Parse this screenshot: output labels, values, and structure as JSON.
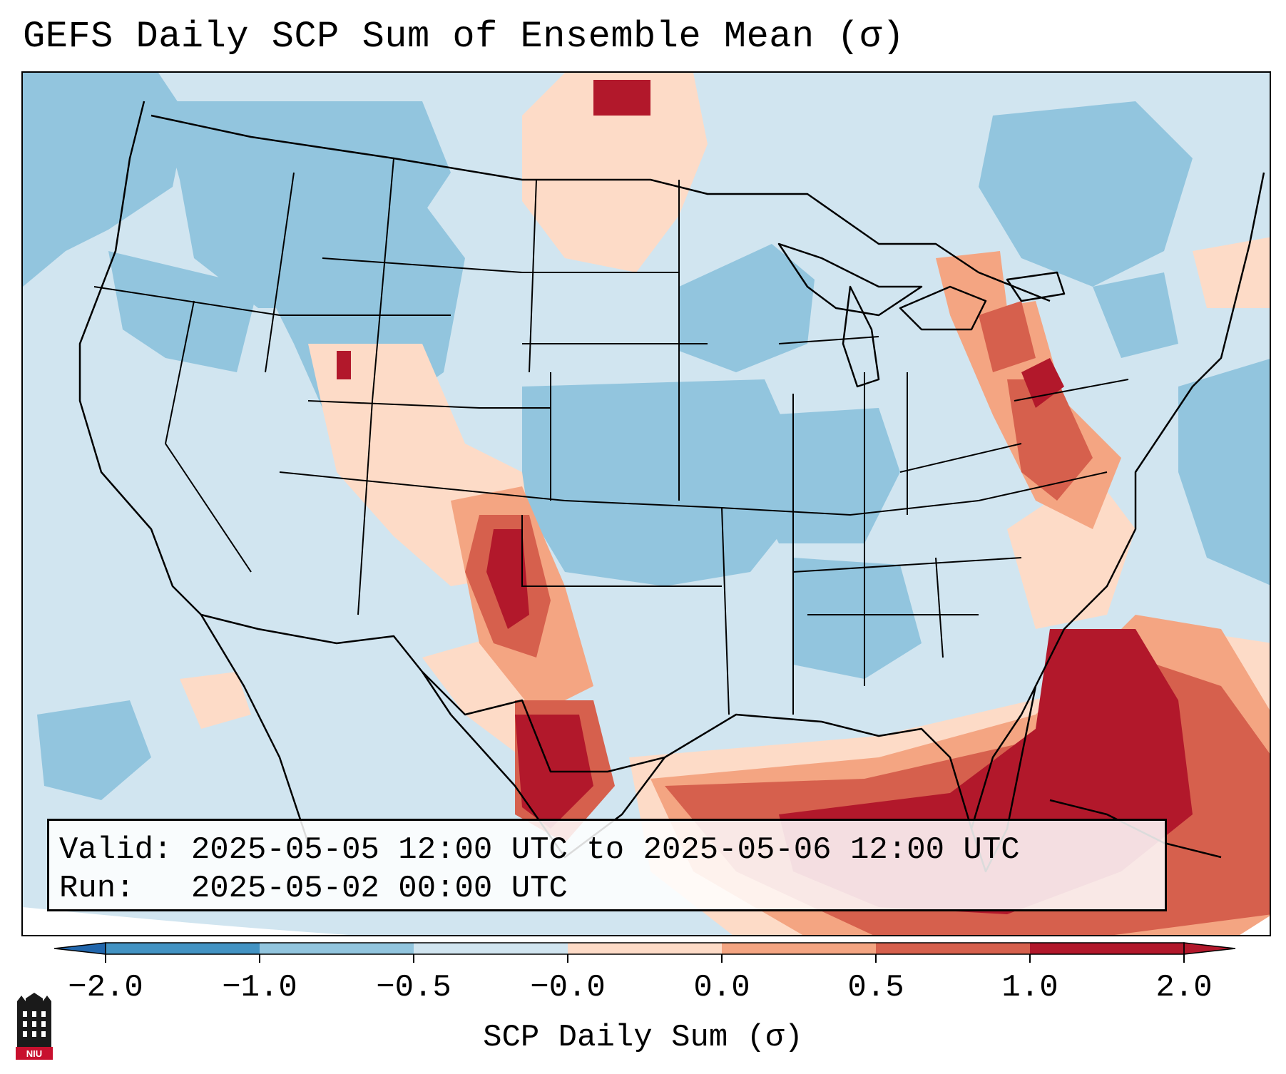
{
  "title": "GEFS Daily SCP Sum of Ensemble Mean (σ)",
  "info": {
    "valid_label": "Valid:",
    "valid_value": "2025-05-05 12:00 UTC to 2025-05-06 12:00 UTC",
    "run_label": "Run:",
    "run_value": "2025-05-02 00:00 UTC"
  },
  "colorbar": {
    "label": "SCP Daily Sum (σ)",
    "ticks": [
      "−2.0",
      "−1.0",
      "−0.5",
      "−0.0",
      "0.0",
      "0.5",
      "1.0",
      "2.0"
    ],
    "colors": [
      "#4393c3",
      "#92c5de",
      "#d1e5f0",
      "#fddbc7",
      "#f4a582",
      "#d6604d",
      "#b2182b"
    ],
    "extend": "both"
  },
  "logo": {
    "text": "NIU"
  }
}
